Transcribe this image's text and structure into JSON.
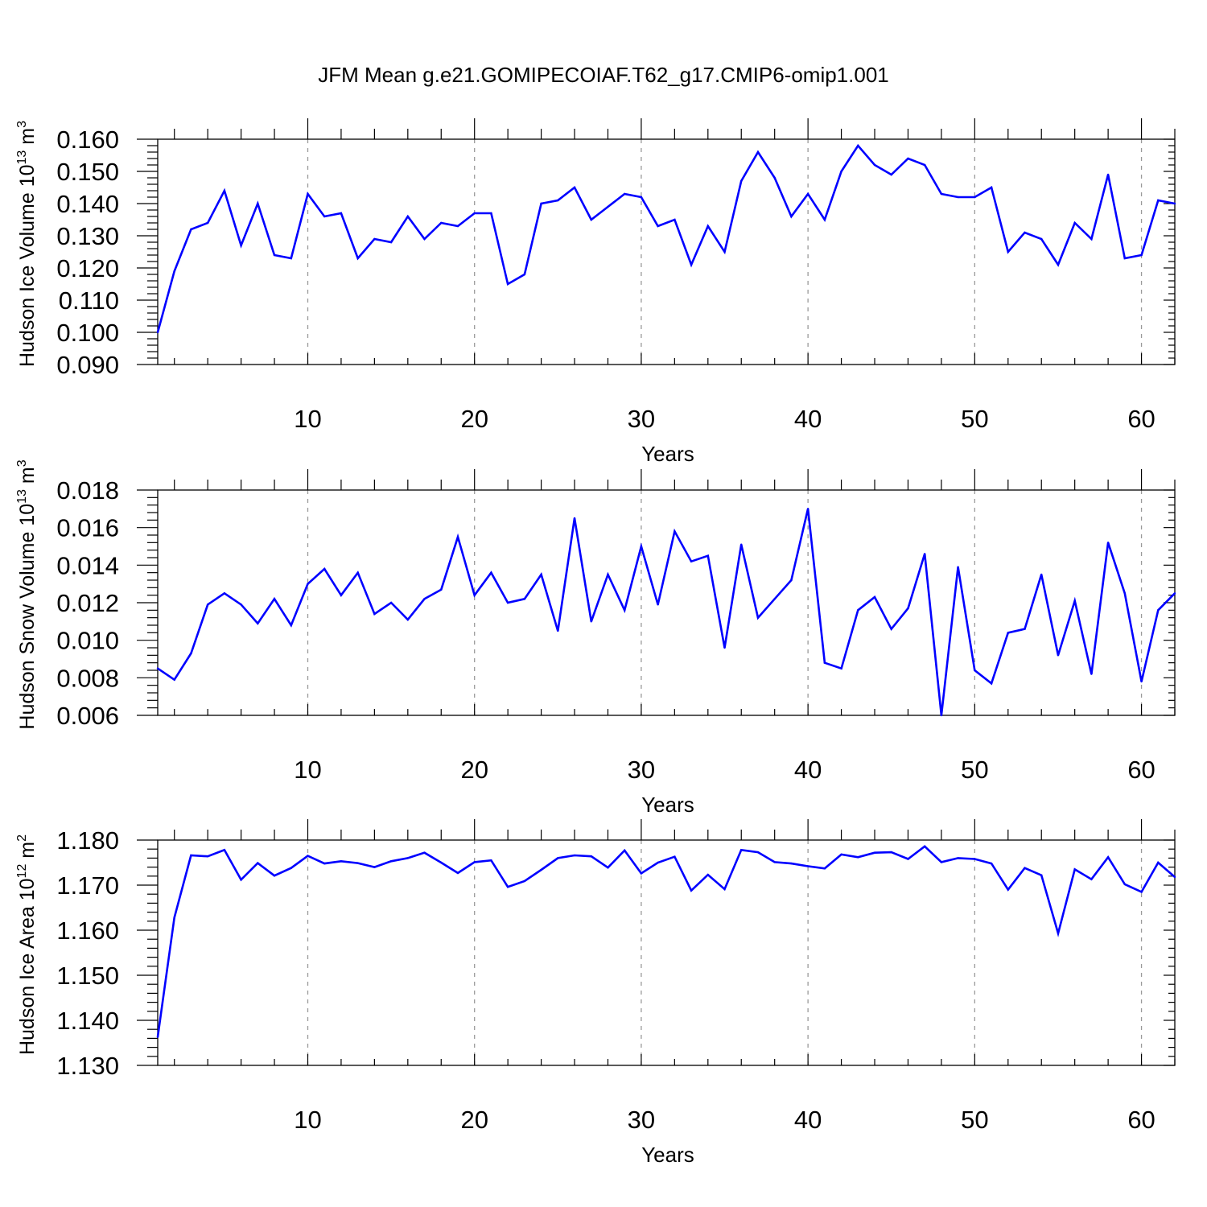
{
  "title": "JFM Mean g.e21.GOMIPECOIAF.T62_g17.CMIP6-omip1.001",
  "colors": {
    "series": "#0000ff",
    "grid": "#9a9a9a",
    "axes": "#000000"
  },
  "chart_data": [
    {
      "type": "line",
      "ylabel": "Hudson Ice Volume 10",
      "ylabel_exp": "13",
      "ylabel_unit": " m",
      "ylabel_unit_exp": "3",
      "xlabel": "Years",
      "xlim": [
        1,
        62
      ],
      "ylim": [
        0.09,
        0.16
      ],
      "yticks": [
        "0.090",
        "0.100",
        "0.110",
        "0.120",
        "0.130",
        "0.140",
        "0.150",
        "0.160"
      ],
      "xticks": [
        "10",
        "20",
        "30",
        "40",
        "50",
        "60"
      ],
      "grid": "x-dashed",
      "x": [
        1,
        2,
        3,
        4,
        5,
        6,
        7,
        8,
        9,
        10,
        11,
        12,
        13,
        14,
        15,
        16,
        17,
        18,
        19,
        20,
        21,
        22,
        23,
        24,
        25,
        26,
        27,
        28,
        29,
        30,
        31,
        32,
        33,
        34,
        35,
        36,
        37,
        38,
        39,
        40,
        41,
        42,
        43,
        44,
        45,
        46,
        47,
        48,
        49,
        50,
        51,
        52,
        53,
        54,
        55,
        56,
        57,
        58,
        59,
        60,
        61,
        62
      ],
      "values": [
        0.1,
        0.119,
        0.132,
        0.134,
        0.144,
        0.127,
        0.14,
        0.124,
        0.123,
        0.143,
        0.136,
        0.137,
        0.123,
        0.129,
        0.128,
        0.136,
        0.129,
        0.134,
        0.133,
        0.137,
        0.137,
        0.115,
        0.118,
        0.14,
        0.141,
        0.145,
        0.135,
        0.139,
        0.143,
        0.142,
        0.133,
        0.135,
        0.121,
        0.133,
        0.125,
        0.147,
        0.156,
        0.148,
        0.136,
        0.143,
        0.135,
        0.15,
        0.158,
        0.152,
        0.149,
        0.154,
        0.152,
        0.143,
        0.142,
        0.142,
        0.145,
        0.125,
        0.131,
        0.129,
        0.121,
        0.134,
        0.129,
        0.149,
        0.123,
        0.124,
        0.141,
        0.14
      ]
    },
    {
      "type": "line",
      "ylabel": "Hudson Snow Volume 10",
      "ylabel_exp": "13",
      "ylabel_unit": " m",
      "ylabel_unit_exp": "3",
      "xlabel": "Years",
      "xlim": [
        1,
        62
      ],
      "ylim": [
        0.006,
        0.018
      ],
      "yticks": [
        "0.006",
        "0.008",
        "0.010",
        "0.012",
        "0.014",
        "0.016",
        "0.018"
      ],
      "xticks": [
        "10",
        "20",
        "30",
        "40",
        "50",
        "60"
      ],
      "grid": "x-dashed",
      "x": [
        1,
        2,
        3,
        4,
        5,
        6,
        7,
        8,
        9,
        10,
        11,
        12,
        13,
        14,
        15,
        16,
        17,
        18,
        19,
        20,
        21,
        22,
        23,
        24,
        25,
        26,
        27,
        28,
        29,
        30,
        31,
        32,
        33,
        34,
        35,
        36,
        37,
        38,
        39,
        40,
        41,
        42,
        43,
        44,
        45,
        46,
        47,
        48,
        49,
        50,
        51,
        52,
        53,
        54,
        55,
        56,
        57,
        58,
        59,
        60,
        61,
        62
      ],
      "values": [
        0.0085,
        0.0079,
        0.0093,
        0.0119,
        0.0125,
        0.0119,
        0.0109,
        0.0122,
        0.0108,
        0.013,
        0.0138,
        0.0124,
        0.0136,
        0.0114,
        0.012,
        0.0111,
        0.0122,
        0.0127,
        0.0155,
        0.0124,
        0.0136,
        0.012,
        0.0122,
        0.0135,
        0.0105,
        0.0165,
        0.011,
        0.0135,
        0.0116,
        0.015,
        0.0119,
        0.0158,
        0.0142,
        0.0145,
        0.0096,
        0.0151,
        0.0112,
        0.0122,
        0.0132,
        0.017,
        0.0088,
        0.0085,
        0.0116,
        0.0123,
        0.0106,
        0.0117,
        0.0146,
        0.006,
        0.0139,
        0.0084,
        0.0077,
        0.0104,
        0.0106,
        0.0135,
        0.0092,
        0.0121,
        0.0082,
        0.0152,
        0.0125,
        0.0078,
        0.0116,
        0.0125
      ]
    },
    {
      "type": "line",
      "ylabel": "Hudson Ice Area 10",
      "ylabel_exp": "12",
      "ylabel_unit": " m",
      "ylabel_unit_exp": "2",
      "xlabel": "Years",
      "xlim": [
        1,
        62
      ],
      "ylim": [
        1.13,
        1.18
      ],
      "yticks": [
        "1.130",
        "1.140",
        "1.150",
        "1.160",
        "1.170",
        "1.180"
      ],
      "xticks": [
        "10",
        "20",
        "30",
        "40",
        "50",
        "60"
      ],
      "grid": "x-dashed",
      "x": [
        1,
        2,
        3,
        4,
        5,
        6,
        7,
        8,
        9,
        10,
        11,
        12,
        13,
        14,
        15,
        16,
        17,
        18,
        19,
        20,
        21,
        22,
        23,
        24,
        25,
        26,
        27,
        28,
        29,
        30,
        31,
        32,
        33,
        34,
        35,
        36,
        37,
        38,
        39,
        40,
        41,
        42,
        43,
        44,
        45,
        46,
        47,
        48,
        49,
        50,
        51,
        52,
        53,
        54,
        55,
        56,
        57,
        58,
        59,
        60,
        61,
        62
      ],
      "values": [
        1.1363,
        1.1628,
        1.1766,
        1.1764,
        1.1778,
        1.1712,
        1.1749,
        1.1721,
        1.1738,
        1.1765,
        1.1748,
        1.1753,
        1.1749,
        1.174,
        1.1753,
        1.176,
        1.1772,
        1.175,
        1.1727,
        1.1751,
        1.1755,
        1.1696,
        1.1709,
        1.1734,
        1.176,
        1.1766,
        1.1764,
        1.1739,
        1.1777,
        1.1726,
        1.175,
        1.1763,
        1.1688,
        1.1723,
        1.1691,
        1.1778,
        1.1773,
        1.1751,
        1.1748,
        1.1742,
        1.1737,
        1.1768,
        1.1762,
        1.1772,
        1.1773,
        1.1758,
        1.1786,
        1.1751,
        1.176,
        1.1758,
        1.1748,
        1.169,
        1.1738,
        1.1722,
        1.1593,
        1.1735,
        1.1713,
        1.1762,
        1.1702,
        1.1685,
        1.175,
        1.1718
      ]
    }
  ]
}
